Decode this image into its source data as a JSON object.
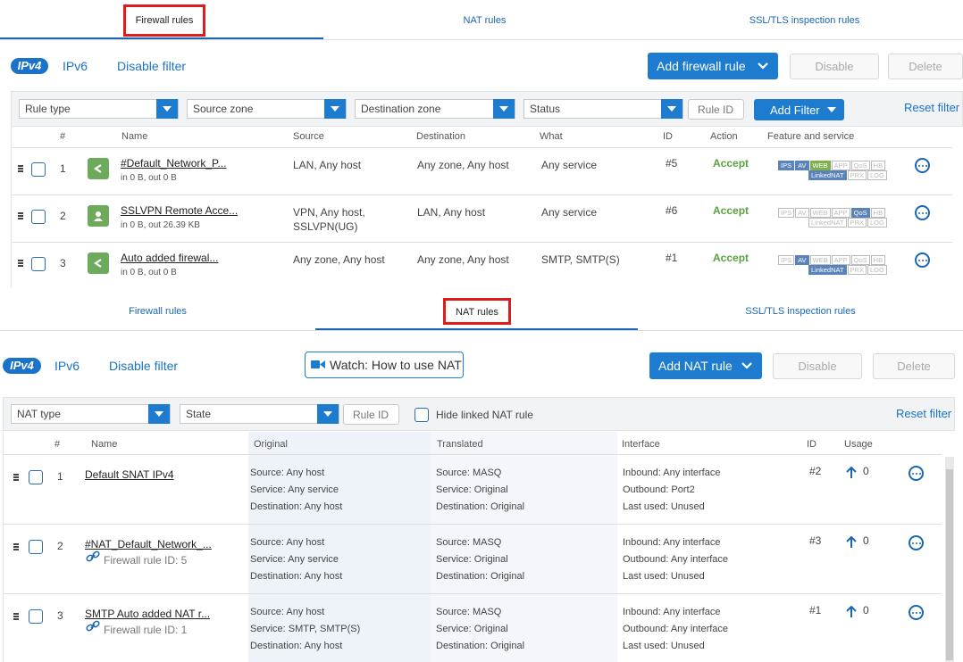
{
  "fw": {
    "tabs": [
      "Firewall rules",
      "NAT rules",
      "SSL/TLS inspection rules"
    ],
    "ipv4": "IPv4",
    "ipv6": "IPv6",
    "disable_filter": "Disable filter",
    "add_button": "Add firewall rule",
    "disable_button": "Disable",
    "delete_button": "Delete",
    "filters": {
      "rule_type": "Rule type",
      "source_zone": "Source zone",
      "destination_zone": "Destination zone",
      "status": "Status",
      "rule_id_placeholder": "Rule ID",
      "add_filter": "Add Filter",
      "reset_filter": "Reset filter"
    },
    "columns": [
      "#",
      "Name",
      "Source",
      "Destination",
      "What",
      "ID",
      "Action",
      "Feature and service"
    ],
    "rows": [
      {
        "num": "1",
        "name": "#Default_Network_P...",
        "traffic": "in 0 B, out 0 B",
        "source": "LAN, Any host",
        "source2": "",
        "destination": "Any zone, Any host",
        "what": "Any service",
        "id": "#5",
        "action": "Accept",
        "icon": "share-icon"
      },
      {
        "num": "2",
        "name": "SSLVPN Remote Acce...",
        "traffic": "in 0 B, out 26.39 KB",
        "source": "VPN, Any host,",
        "source2": "SSLVPN(UG)",
        "destination": "LAN, Any host",
        "what": "Any service",
        "id": "#6",
        "action": "Accept",
        "icon": "user-icon"
      },
      {
        "num": "3",
        "name": "Auto added firewal...",
        "traffic": "in 0 B, out 0 B",
        "source": "Any zone, Any host",
        "source2": "",
        "destination": "Any zone, Any host",
        "what": "SMTP, SMTP(S)",
        "id": "#1",
        "action": "Accept",
        "icon": "share-icon"
      }
    ],
    "feature_tags": [
      "IPS",
      "AV",
      "WEB",
      "APP",
      "QoS",
      "HB",
      "LinkedNAT",
      "PRX",
      "LOG"
    ]
  },
  "nat": {
    "tabs": [
      "Firewall rules",
      "NAT rules",
      "SSL/TLS inspection rules"
    ],
    "ipv4": "IPv4",
    "ipv6": "IPv6",
    "disable_filter": "Disable filter",
    "watch": "Watch: How to use NAT",
    "add_button": "Add NAT rule",
    "disable_button": "Disable",
    "delete_button": "Delete",
    "filters": {
      "nat_type": "NAT type",
      "state": "State",
      "rule_id_placeholder": "Rule ID",
      "hide_linked": "Hide linked NAT rule",
      "reset_filter": "Reset filter"
    },
    "columns": [
      "#",
      "Name",
      "Original",
      "Translated",
      "Interface",
      "ID",
      "Usage"
    ],
    "rows": [
      {
        "num": "1",
        "name": "Default SNAT IPv4",
        "sub": "",
        "orig": [
          "Source: Any host",
          "Service: Any service",
          "Destination: Any host"
        ],
        "trans": [
          "Source: MASQ",
          "Service: Original",
          "Destination: Original"
        ],
        "iface": [
          "Inbound: Any interface",
          "Outbound: Port2",
          "Last used: Unused"
        ],
        "id": "#2",
        "usage": "0"
      },
      {
        "num": "2",
        "name": "#NAT_Default_Network_...",
        "sub": "Firewall rule ID: 5",
        "orig": [
          "Source: Any host",
          "Service: Any service",
          "Destination: Any host"
        ],
        "trans": [
          "Source: MASQ",
          "Service: Original",
          "Destination: Original"
        ],
        "iface": [
          "Inbound: Any interface",
          "Outbound: Any interface",
          "Last used: Unused"
        ],
        "id": "#3",
        "usage": "0"
      },
      {
        "num": "3",
        "name": "SMTP Auto added NAT r...",
        "sub": "Firewall rule ID: 1",
        "orig": [
          "Source: Any host",
          "Service: SMTP, SMTP(S)",
          "Destination: Any host"
        ],
        "trans": [
          "Source: MASQ",
          "Service: Original",
          "Destination: Original"
        ],
        "iface": [
          "Inbound: Any interface",
          "Outbound: Any interface",
          "Last used: Unused"
        ],
        "id": "#1",
        "usage": "0"
      }
    ]
  }
}
